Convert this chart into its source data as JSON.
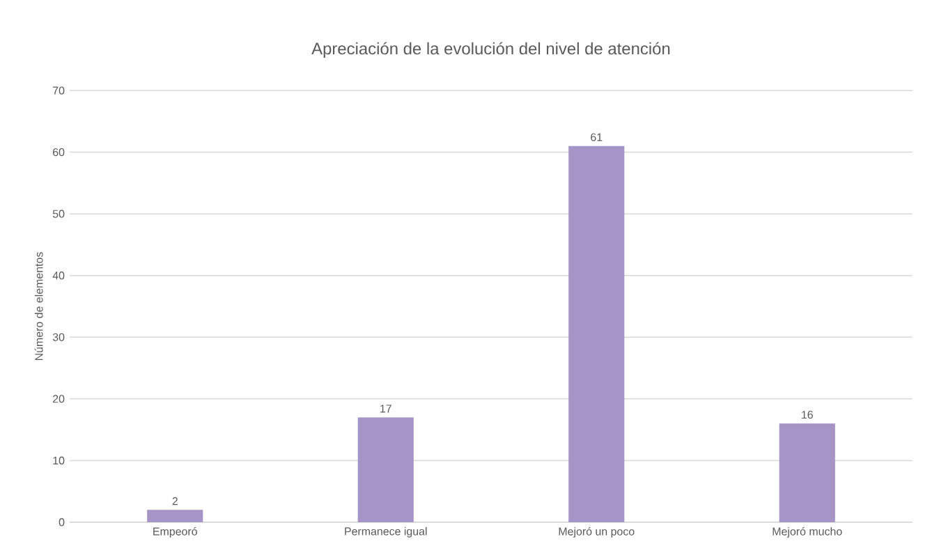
{
  "chart_data": {
    "type": "bar",
    "title": "Apreciación de la evolución del nivel de atención",
    "ylabel": "Número de elementos",
    "categories": [
      "Empeoró",
      "Permanece igual",
      "Mejoró un poco",
      "Mejoró mucho"
    ],
    "values": [
      2,
      17,
      61,
      16
    ],
    "color": "#a794c6",
    "ylim": [
      0,
      70
    ],
    "yticks": [
      0,
      10,
      20,
      30,
      40,
      50,
      60,
      70
    ],
    "grid": "y",
    "data_labels": true
  }
}
